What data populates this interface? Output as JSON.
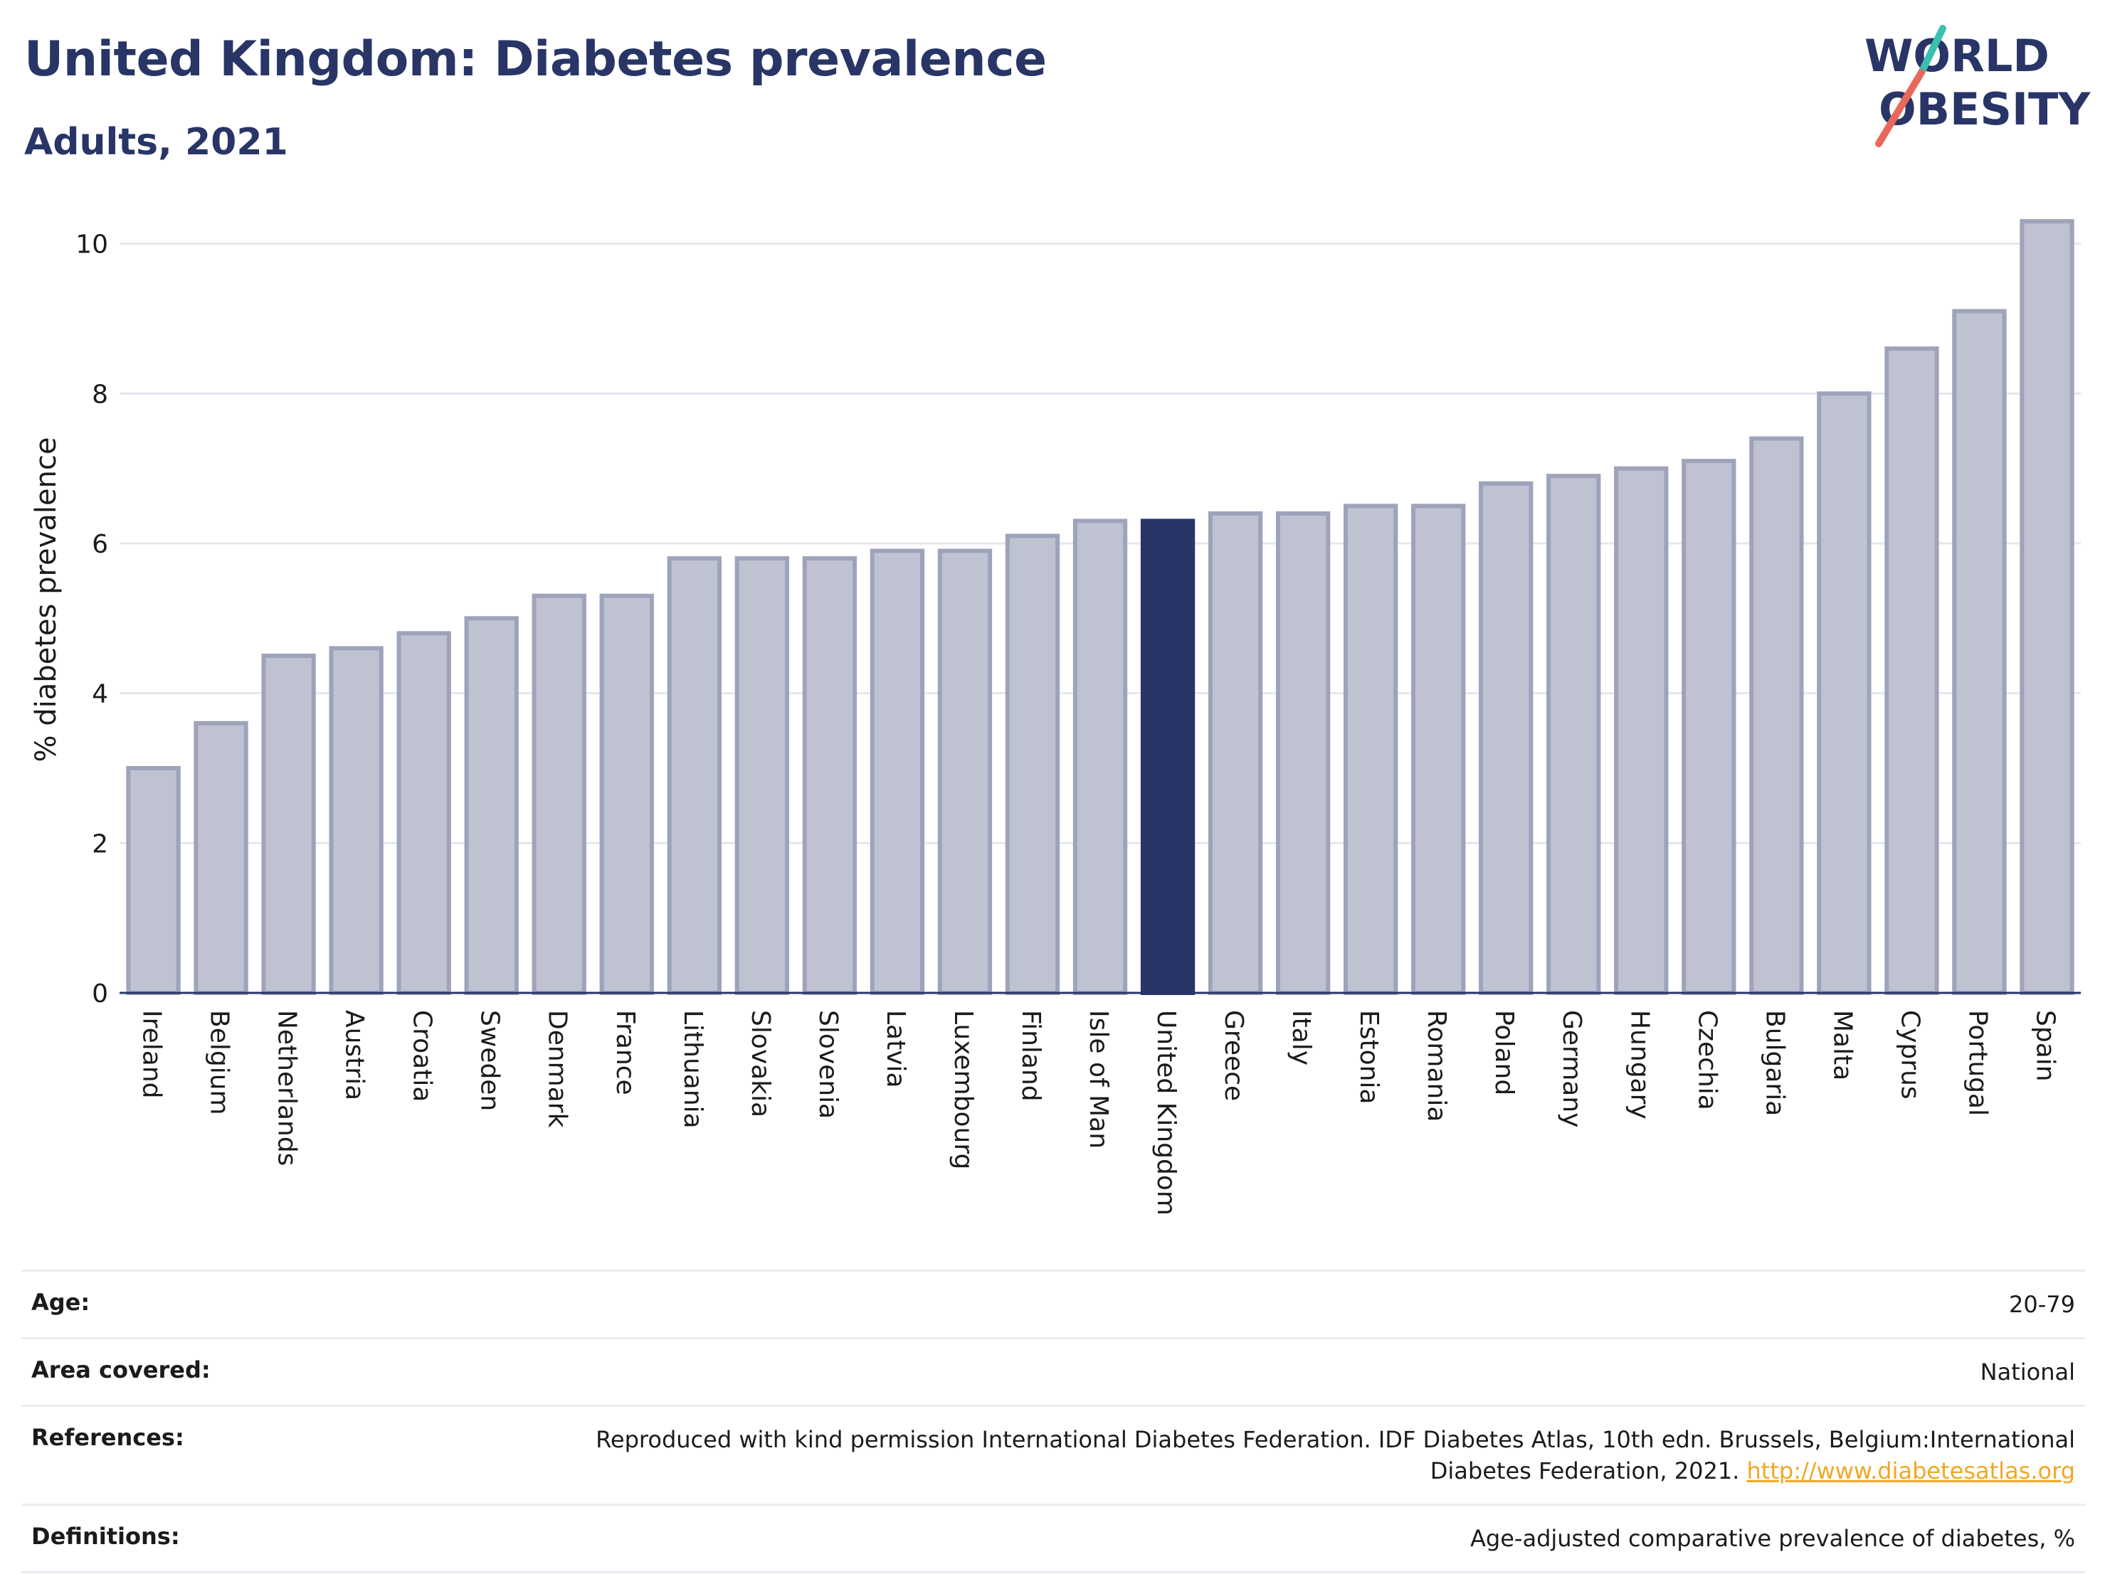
{
  "header": {
    "title": "United Kingdom: Diabetes prevalence",
    "subtitle": "Adults, 2021"
  },
  "logo": {
    "line1": "WORLD",
    "line2": "OBESITY",
    "color_text": "#283566",
    "color_slash_top": "#3bbfb0",
    "color_slash_bottom": "#e8695c"
  },
  "colors": {
    "bar": "#bfc2d0",
    "bar_border": "#9ea3bb",
    "highlight": "#283566",
    "grid": "#e6e6ee",
    "axis": "#283566"
  },
  "chart_data": {
    "type": "bar",
    "ylabel": "% diabetes prevalence",
    "xlabel": "",
    "ylim": [
      0,
      10.5
    ],
    "yticks": [
      0,
      2,
      4,
      6,
      8,
      10
    ],
    "grid": true,
    "highlight": "United Kingdom",
    "categories": [
      "Ireland",
      "Belgium",
      "Netherlands",
      "Austria",
      "Croatia",
      "Sweden",
      "Denmark",
      "France",
      "Lithuania",
      "Slovakia",
      "Slovenia",
      "Latvia",
      "Luxembourg",
      "Finland",
      "Isle of Man",
      "United Kingdom",
      "Greece",
      "Italy",
      "Estonia",
      "Romania",
      "Poland",
      "Germany",
      "Hungary",
      "Czechia",
      "Bulgaria",
      "Malta",
      "Cyprus",
      "Portugal",
      "Spain"
    ],
    "values": [
      3.0,
      3.6,
      4.5,
      4.6,
      4.8,
      5.0,
      5.3,
      5.3,
      5.8,
      5.8,
      5.8,
      5.9,
      5.9,
      6.1,
      6.3,
      6.3,
      6.4,
      6.4,
      6.5,
      6.5,
      6.8,
      6.9,
      7.0,
      7.1,
      7.4,
      8.0,
      8.6,
      9.1,
      10.3
    ]
  },
  "info": {
    "age_label": "Age:",
    "age_value": "20-79",
    "area_label": "Area covered:",
    "area_value": "National",
    "references_label": "References:",
    "references_line1": "Reproduced with kind permission International Diabetes Federation.  IDF Diabetes Atlas, 10th edn. Brussels, Belgium:International",
    "references_line2": "Diabetes Federation, 2021. ",
    "references_link": "http://www.diabetesatlas.org",
    "definitions_label": "Definitions:",
    "definitions_value": "Age-adjusted comparative prevalence of diabetes, %"
  }
}
